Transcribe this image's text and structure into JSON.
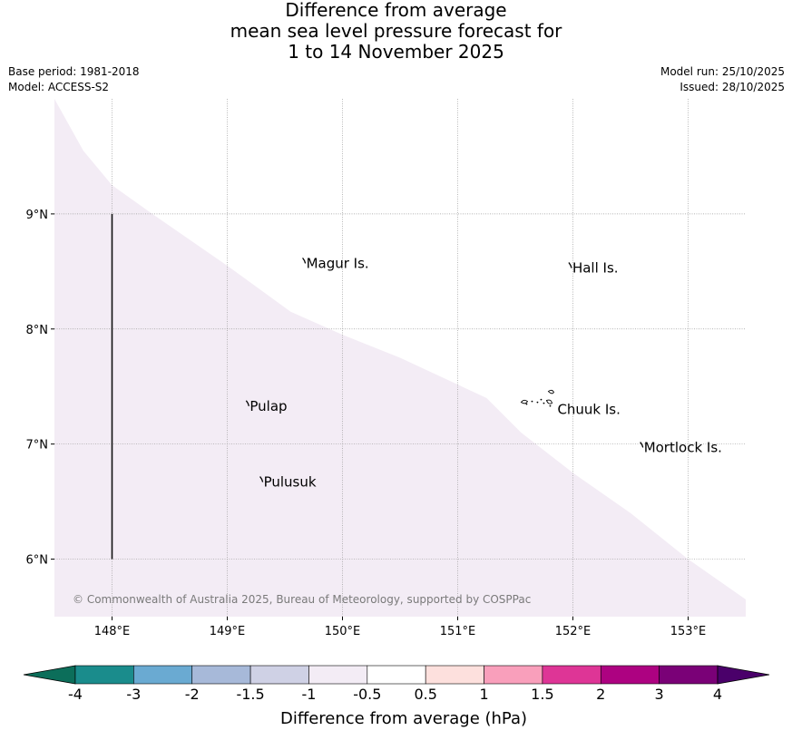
{
  "title_lines": [
    "Difference from average",
    "mean sea level pressure forecast for",
    "1 to 14 November 2025"
  ],
  "meta": {
    "base_period": "Base period: 1981-2018",
    "model": "Model: ACCESS-S2",
    "model_run": "Model run: 25/10/2025",
    "issued": "Issued: 28/10/2025"
  },
  "map": {
    "lon_range": [
      147.5,
      153.5
    ],
    "lat_range": [
      5.5,
      10.0
    ],
    "lon_ticks": [
      148,
      149,
      150,
      151,
      152,
      153
    ],
    "lon_tick_labels": [
      "148°E",
      "149°E",
      "150°E",
      "151°E",
      "152°E",
      "153°E"
    ],
    "lat_ticks": [
      6,
      7,
      8,
      9
    ],
    "lat_tick_labels": [
      "6°N",
      "7°N",
      "8°N",
      "9°N"
    ],
    "shading_color": "#f3ecf5",
    "shading_boundary": [
      [
        147.5,
        10.0
      ],
      [
        147.75,
        9.55
      ],
      [
        148.0,
        9.25
      ],
      [
        148.35,
        9.0
      ],
      [
        149.0,
        8.55
      ],
      [
        149.55,
        8.15
      ],
      [
        150.0,
        7.95
      ],
      [
        150.5,
        7.75
      ],
      [
        151.25,
        7.4
      ],
      [
        151.55,
        7.1
      ],
      [
        152.0,
        6.75
      ],
      [
        152.5,
        6.4
      ],
      [
        153.0,
        6.0
      ],
      [
        153.5,
        5.65
      ]
    ],
    "places": [
      {
        "name": "Magur Is.",
        "lon": 149.67,
        "lat": 8.57
      },
      {
        "name": "Hall Is.",
        "lon": 151.98,
        "lat": 8.53
      },
      {
        "name": "Pulap",
        "lon": 149.18,
        "lat": 7.33
      },
      {
        "name": "Chuuk Is.",
        "lon": 151.85,
        "lat": 7.3
      },
      {
        "name": "Mortlock Is.",
        "lon": 152.6,
        "lat": 6.97
      },
      {
        "name": "Pulusuk",
        "lon": 149.3,
        "lat": 6.67
      }
    ],
    "boundary_line": {
      "lon": 148.0,
      "lat_from": 6.0,
      "lat_to": 9.0
    },
    "copyright": "© Commonwealth of Australia 2025, Bureau of Meteorology, supported by COSPPac"
  },
  "colorbar": {
    "title": "Difference from average (hPa)",
    "tick_labels": [
      "-4",
      "-3",
      "-2",
      "-1.5",
      "-1",
      "-0.5",
      "0.5",
      "1",
      "1.5",
      "2",
      "3",
      "4"
    ],
    "colors": [
      "#1a8c8c",
      "#6aaad2",
      "#a7b9d9",
      "#cfd1e5",
      "#f3ecf5",
      "#ffffff",
      "#fde0dd",
      "#f99fbb",
      "#de3596",
      "#ad0281",
      "#7a0177"
    ],
    "under_color": "#0c6e5a",
    "over_color": "#4a006a"
  }
}
